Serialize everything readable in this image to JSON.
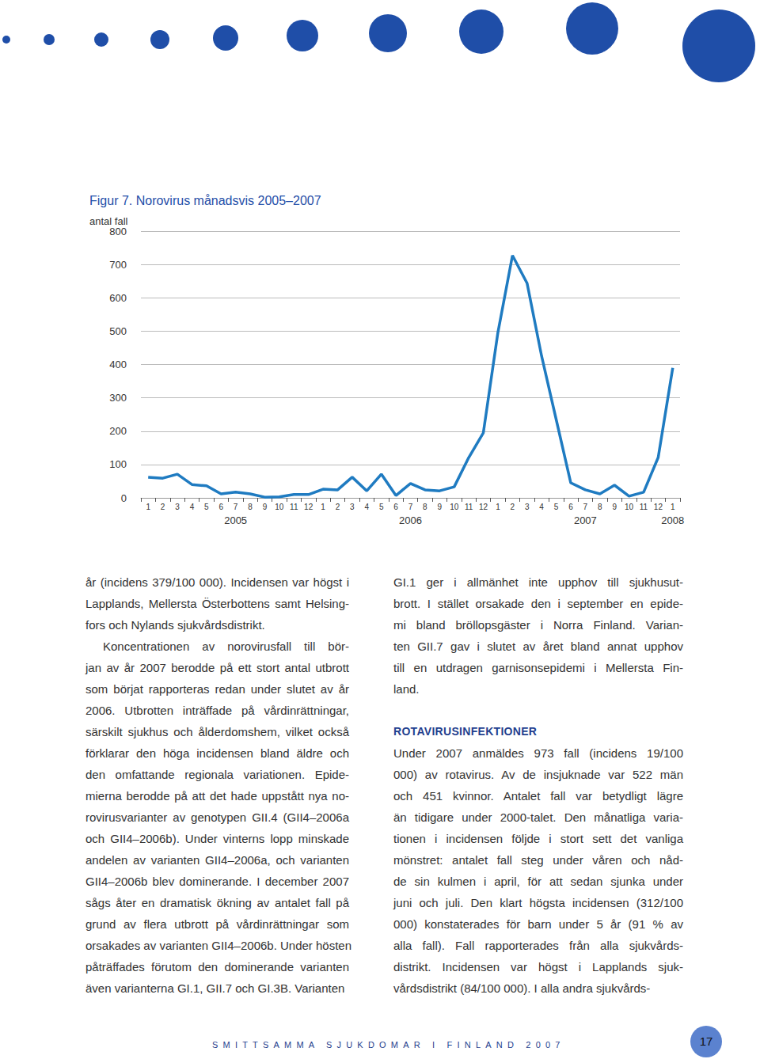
{
  "chart_data": {
    "type": "line",
    "title": "Figur 7. Norovirus månadsvis 2005–2007",
    "y_label": "antal fall",
    "categories": [
      "1",
      "2",
      "3",
      "4",
      "5",
      "6",
      "7",
      "8",
      "9",
      "10",
      "11",
      "12",
      "1",
      "2",
      "3",
      "4",
      "5",
      "6",
      "7",
      "8",
      "9",
      "10",
      "11",
      "12",
      "1",
      "2",
      "3",
      "4",
      "5",
      "6",
      "7",
      "8",
      "9",
      "10",
      "11",
      "12",
      "1"
    ],
    "x_groups": [
      null,
      null,
      null,
      null,
      null,
      null,
      "2005",
      null,
      null,
      null,
      null,
      null,
      null,
      null,
      null,
      null,
      null,
      null,
      "2006",
      null,
      null,
      null,
      null,
      null,
      null,
      null,
      null,
      null,
      null,
      null,
      "2007",
      null,
      null,
      null,
      null,
      null,
      "2008"
    ],
    "values": [
      62,
      59,
      71,
      40,
      36,
      12,
      17,
      12,
      2,
      3,
      10,
      10,
      26,
      24,
      62,
      21,
      71,
      7,
      43,
      24,
      21,
      33,
      121,
      195,
      496,
      727,
      644,
      425,
      235,
      45,
      24,
      12,
      38,
      5,
      17,
      121,
      390
    ],
    "color": "#1f7bc1",
    "ylim": [
      0,
      800
    ],
    "yticks": [
      0,
      100,
      200,
      300,
      400,
      500,
      600,
      700,
      800
    ],
    "grid": true
  },
  "page": {
    "columns": [
      {
        "blocks": [
          {
            "type": "paragraph",
            "indent": false,
            "lines": [
              "år (incidens 379/100 000). Incidensen var högst i",
              "Lapplands, Mellersta Österbottens samt Helsing-",
              "fors och Nylands sjukvårdsdistrikt."
            ]
          },
          {
            "type": "paragraph",
            "indent": true,
            "lines": [
              "Koncentrationen av norovirusfall till bör-",
              "jan av år 2007 berodde på ett stort antal utbrott",
              "som börjat rapporteras redan under slutet av år",
              "2006. Utbrotten inträffade på vårdinrättningar,",
              "särskilt sjukhus och ålderdomshem, vilket också",
              "förklarar den höga incidensen bland äldre och",
              "den omfattande regionala variationen. Epide-",
              "mierna berodde på att det hade uppstått nya no-",
              "rovirusvarianter av genotypen GII.4 (GII4–2006a",
              "och GII4–2006b). Under vinterns lopp minskade",
              "andelen av varianten GII4–2006a, och varianten",
              "GII4–2006b blev dominerande. I december 2007",
              "sågs åter en dramatisk ökning av antalet fall på",
              "grund av flera utbrott på vårdinrättningar som",
              "orsakades av varianten GII4–2006b. Under hösten",
              "påträffades förutom den dominerande varianten",
              "även varianterna GI.1, GII.7 och GI.3B. Varianten"
            ]
          }
        ]
      },
      {
        "blocks": [
          {
            "type": "paragraph",
            "indent": false,
            "lines": [
              "GI.1 ger i allmänhet inte upphov till sjukhusut-",
              "brott. I stället orsakade den i september en epide-",
              "mi bland bröllopsgäster i Norra Finland. Varian-",
              "ten GII.7 gav i slutet av året bland annat upphov",
              "till en utdragen garnisonsepidemi i Mellersta Fin-",
              "land."
            ]
          },
          {
            "type": "heading",
            "text": "ROTAVIRUSINFEKTIONER"
          },
          {
            "type": "paragraph",
            "indent": false,
            "lines": [
              "Under 2007 anmäldes 973 fall (incidens 19/100",
              "000) av rotavirus. Av de insjuknade var 522 män",
              "och 451 kvinnor. Antalet fall var betydligt lägre",
              "än tidigare under 2000-talet. Den månatliga varia-",
              "tionen i incidensen följde i stort sett det vanliga",
              "mönstret: antalet fall steg under våren och nåd-",
              "de sin kulmen i april, för att sedan sjunka under",
              "juni och juli. Den klart högsta incidensen (312/100",
              "000) konstaterades för barn under 5 år (91 % av",
              "alla fall). Fall rapporterades från alla sjukvårds-",
              "distrikt. Incidensen var högst i Lapplands sjuk-",
              "vårdsdistrikt (84/100 000). I alla andra sjukvårds-"
            ]
          }
        ]
      }
    ],
    "footer": "SMITTSAMMA SJUKDOMAR I FINLAND 2007",
    "page_number": 17
  }
}
